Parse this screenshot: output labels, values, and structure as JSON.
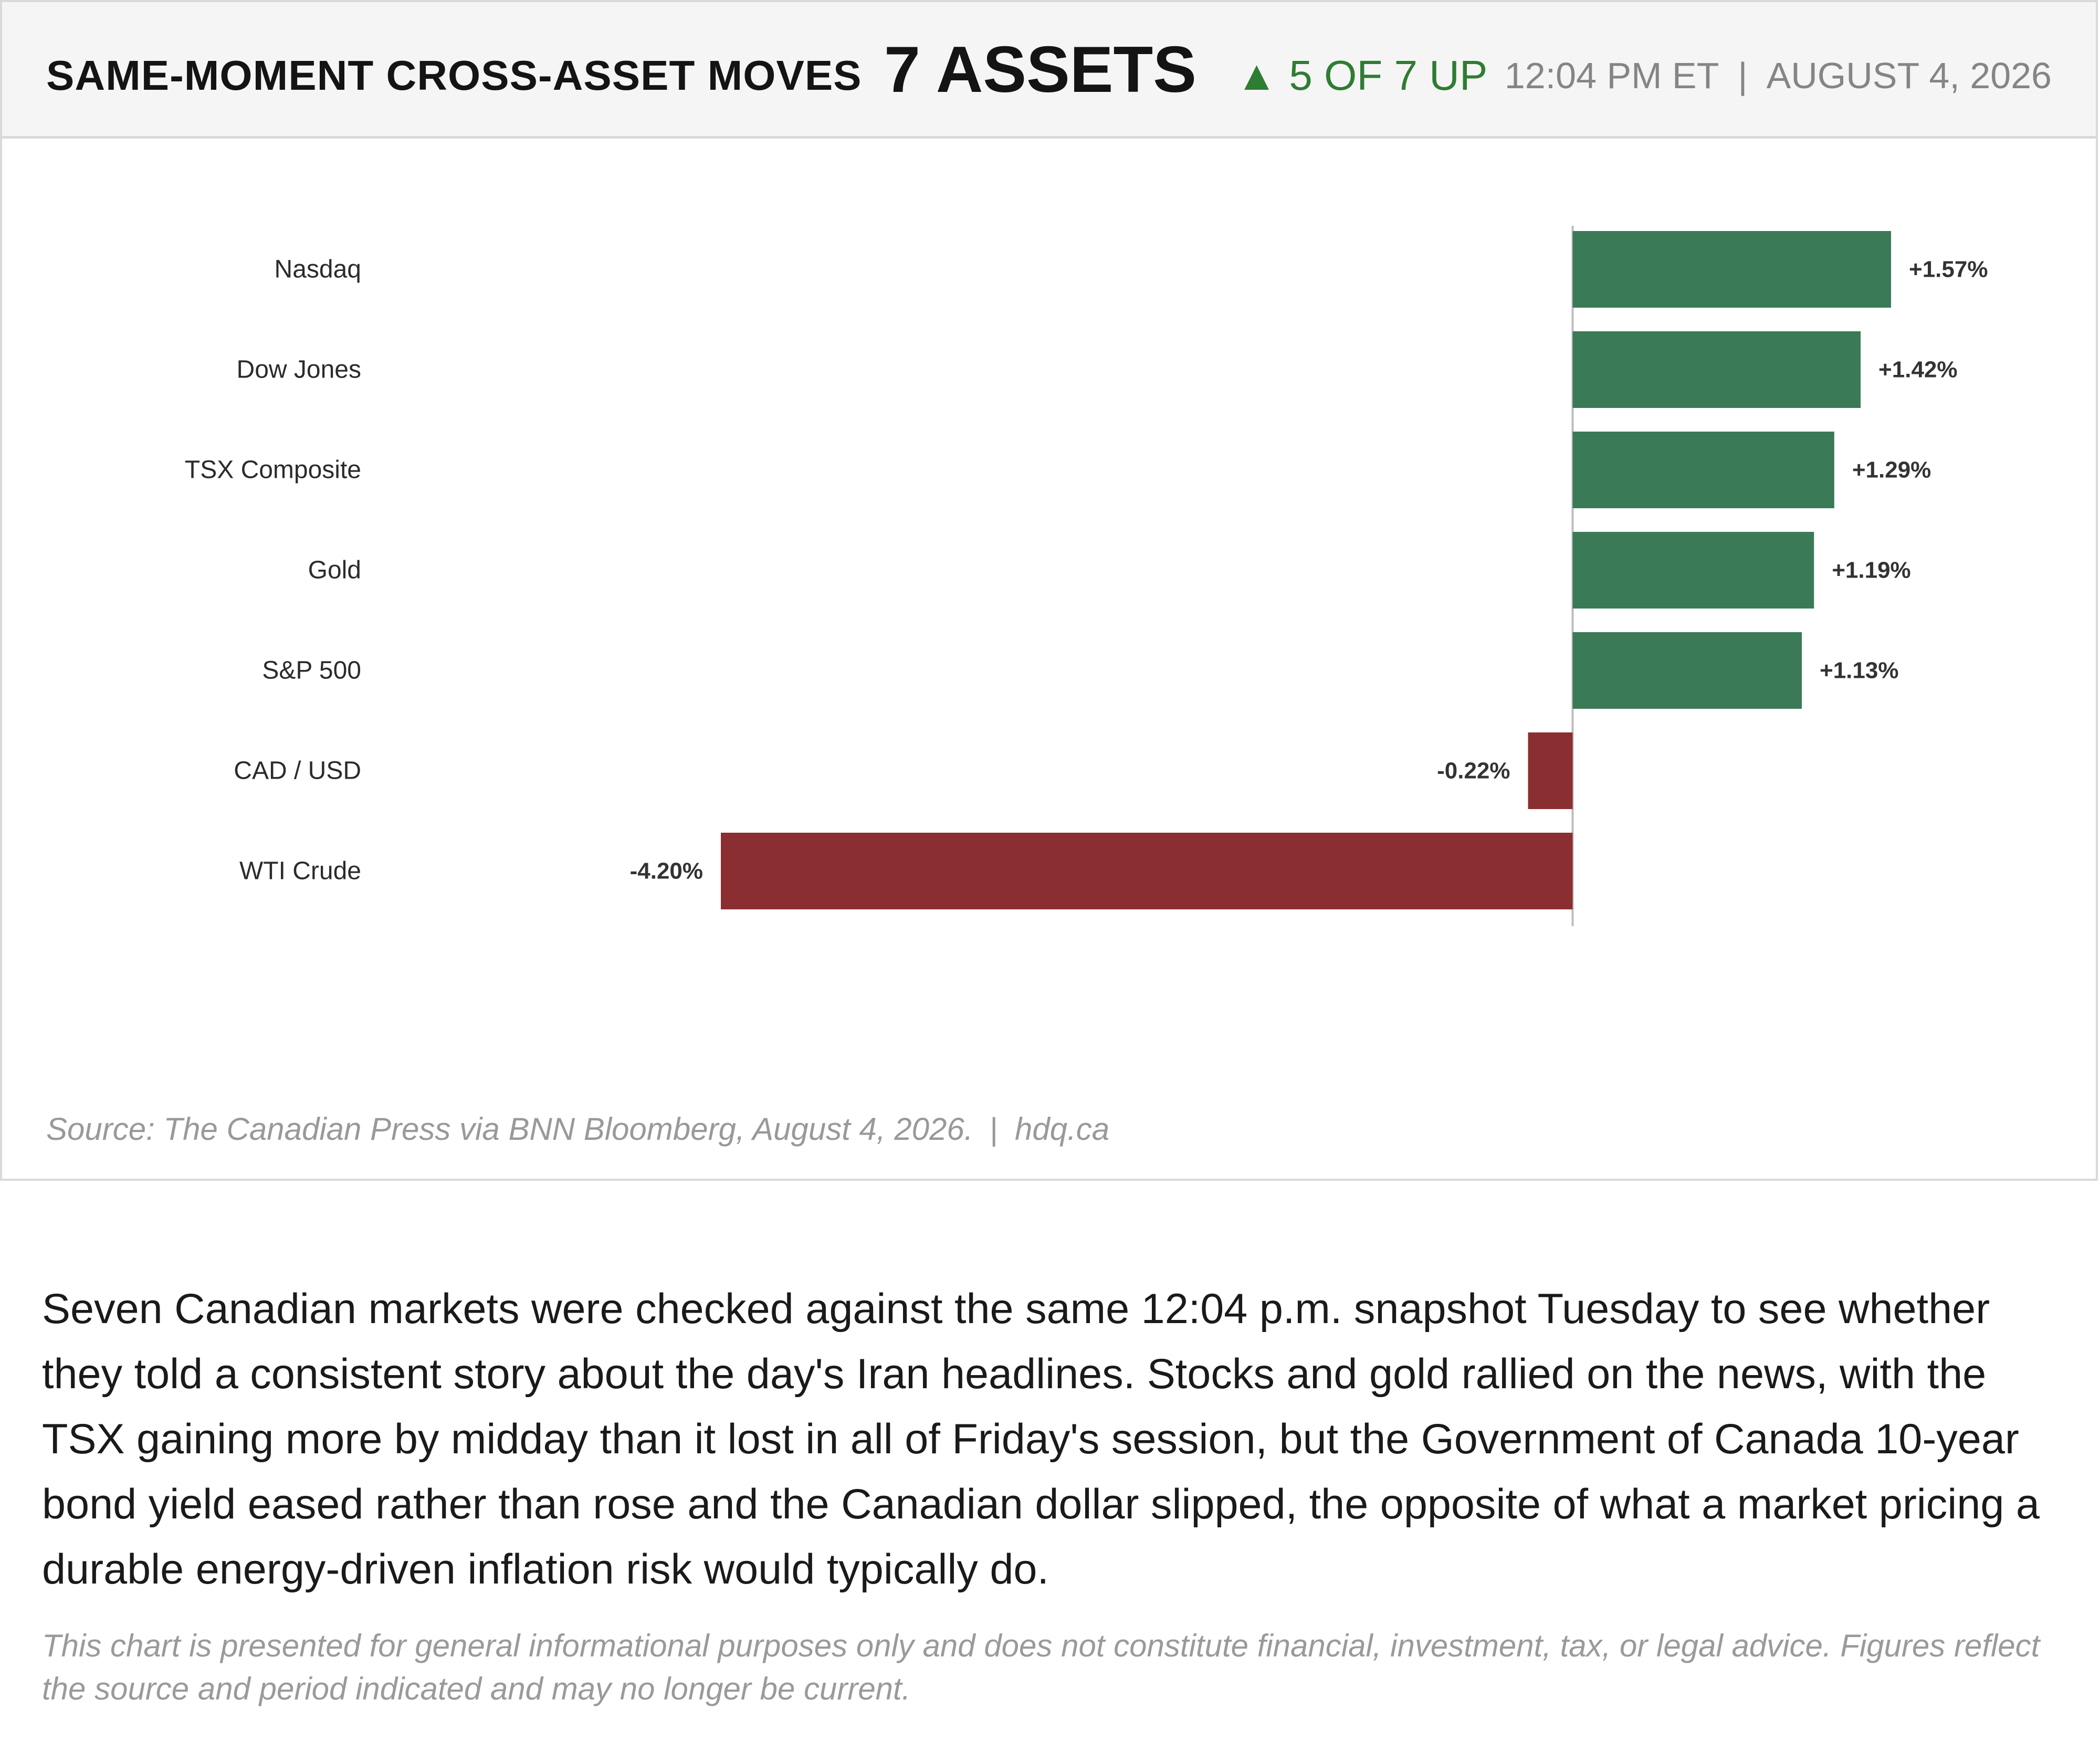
{
  "header": {
    "title": "SAME-MOMENT CROSS-ASSET MOVES",
    "count": "7 ASSETS",
    "up_arrow": "▲",
    "up_text": "5 OF 7 UP",
    "time": "12:04 PM ET",
    "separator": "|",
    "date": "AUGUST 4, 2026"
  },
  "colors": {
    "positive": "#3a7a56",
    "negative": "#8b2e31",
    "up_text": "#2e7d32"
  },
  "chart_data": {
    "type": "bar",
    "orientation": "horizontal",
    "categories": [
      "Nasdaq",
      "Dow Jones",
      "TSX Composite",
      "Gold",
      "S&P 500",
      "CAD / USD",
      "WTI Crude"
    ],
    "values": [
      1.57,
      1.42,
      1.29,
      1.19,
      1.13,
      -0.22,
      -4.2
    ],
    "labels": [
      "+1.57%",
      "+1.42%",
      "+1.29%",
      "+1.19%",
      "+1.13%",
      "-0.22%",
      "-4.20%"
    ],
    "unit": "%",
    "xlim": [
      -5.0,
      2.3
    ],
    "grid": false,
    "legend": "none"
  },
  "source": {
    "text": "Source: The Canadian Press via BNN Bloomberg, August 4, 2026.",
    "separator": "|",
    "site": "hdq.ca"
  },
  "body_text": "Seven Canadian markets were checked against the same 12:04 p.m. snapshot Tuesday to see whether they told a consistent story about the day's Iran headlines. Stocks and gold rallied on the news, with the TSX gaining more by midday than it lost in all of Friday's session, but the Government of Canada 10-year bond yield eased rather than rose and the Canadian dollar slipped, the opposite of what a market pricing a durable energy-driven inflation risk would typically do.",
  "disclaimer": "This chart is presented for general informational purposes only and does not constitute financial, investment, tax, or legal advice. Figures reflect the source and period indicated and may no longer be current."
}
